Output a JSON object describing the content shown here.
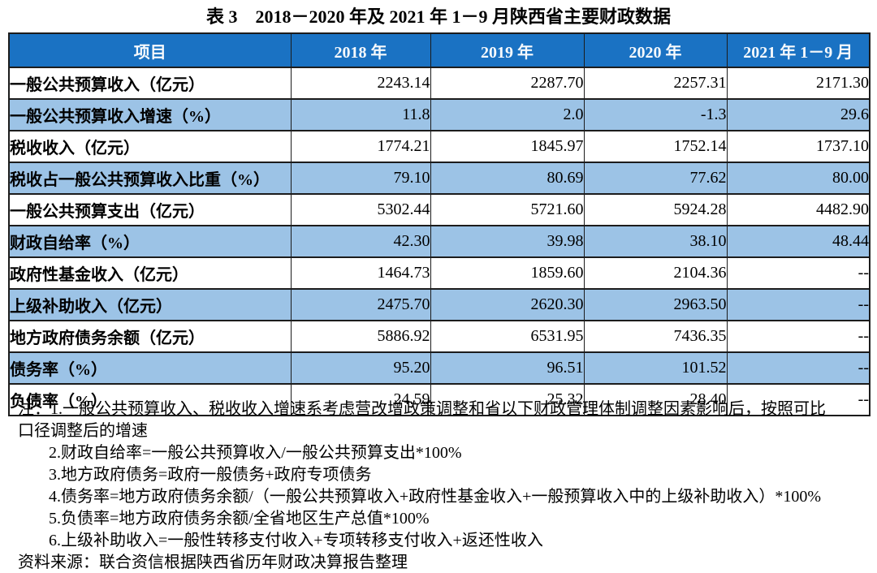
{
  "page": {
    "title": "表 3　2018－2020 年及 2021 年 1－9 月陕西省主要财政数据"
  },
  "colors": {
    "header_bg": "#1A72C3",
    "header_text": "#F6F9FC",
    "alt_row_bg": "#9CC3E6",
    "border": "#1C1C1C"
  },
  "table": {
    "columns": [
      "项目",
      "2018 年",
      "2019 年",
      "2020 年",
      "2021 年 1－9 月"
    ],
    "rows": [
      {
        "label": "一般公共预算收入（亿元）",
        "values": [
          "2243.14",
          "2287.70",
          "2257.31",
          "2171.30"
        ]
      },
      {
        "label": "一般公共预算收入增速（%）",
        "values": [
          "11.8",
          "2.0",
          "-1.3",
          "29.6"
        ]
      },
      {
        "label": "税收收入（亿元）",
        "values": [
          "1774.21",
          "1845.97",
          "1752.14",
          "1737.10"
        ]
      },
      {
        "label": "税收占一般公共预算收入比重（%）",
        "values": [
          "79.10",
          "80.69",
          "77.62",
          "80.00"
        ]
      },
      {
        "label": "一般公共预算支出（亿元）",
        "values": [
          "5302.44",
          "5721.60",
          "5924.28",
          "4482.90"
        ]
      },
      {
        "label": "财政自给率（%）",
        "values": [
          "42.30",
          "39.98",
          "38.10",
          "48.44"
        ]
      },
      {
        "label": "政府性基金收入（亿元）",
        "values": [
          "1464.73",
          "1859.60",
          "2104.36",
          "--"
        ]
      },
      {
        "label": "上级补助收入（亿元）",
        "values": [
          "2475.70",
          "2620.30",
          "2963.50",
          "--"
        ]
      },
      {
        "label": "地方政府债务余额（亿元）",
        "values": [
          "5886.92",
          "6531.95",
          "7436.35",
          "--"
        ]
      },
      {
        "label": "债务率（%）",
        "values": [
          "95.20",
          "96.51",
          "101.52",
          "--"
        ]
      },
      {
        "label": "负债率（%）",
        "values": [
          "24.59",
          "25.32",
          "28.40",
          "--"
        ]
      }
    ]
  },
  "notes": {
    "lines": [
      {
        "text": "注：1.一般公共预算收入、税收收入增速系考虑营改增政策调整和省以下财政管理体制调整因素影响后，按照可比",
        "indent": false
      },
      {
        "text": "口径调整后的增速",
        "indent": false
      },
      {
        "text": "2.财政自给率=一般公共预算收入/一般公共预算支出*100%",
        "indent": true
      },
      {
        "text": "3.地方政府债务=政府一般债务+政府专项债务",
        "indent": true
      },
      {
        "text": "4.债务率=地方政府债务余额/（一般公共预算收入+政府性基金收入+一般预算收入中的上级补助收入）*100%",
        "indent": true
      },
      {
        "text": "5.负债率=地方政府债务余额/全省地区生产总值*100%",
        "indent": true
      },
      {
        "text": "6.上级补助收入=一般性转移支付收入+专项转移支付收入+返还性收入",
        "indent": true
      },
      {
        "text": "资料来源：联合资信根据陕西省历年财政决算报告整理",
        "indent": false
      }
    ]
  }
}
